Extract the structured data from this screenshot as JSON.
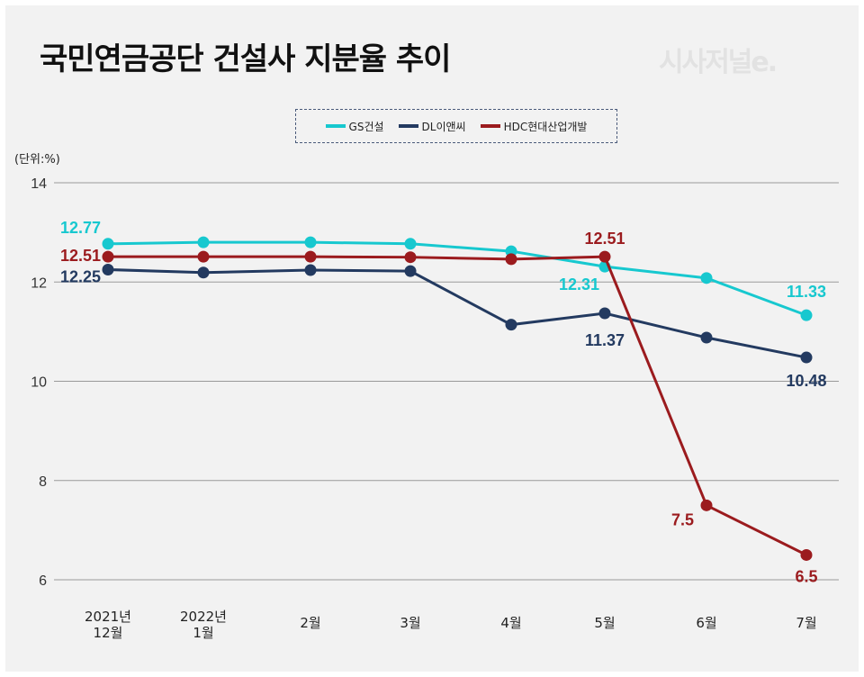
{
  "title": "국민연금공단 건설사 지분율 추이",
  "logo_text": "시사저널e.",
  "unit_label": "(단위:%)",
  "chart_data": {
    "type": "line",
    "title": "국민연금공단 건설사 지분율 추이",
    "xlabel": "",
    "ylabel": "(단위:%)",
    "categories": [
      "2021년\n12월",
      "2022년\n1월",
      "2월",
      "3월",
      "4월",
      "5월",
      "6월",
      "7월"
    ],
    "ylim": [
      6,
      14
    ],
    "yticks": [
      6,
      8,
      10,
      12,
      14
    ],
    "grid": true,
    "legend_position": "top-center",
    "series": [
      {
        "name": "GS건설",
        "color": "#17c8cf",
        "values": [
          12.77,
          12.8,
          12.8,
          12.77,
          12.62,
          12.31,
          12.08,
          11.33
        ],
        "labeled_points": [
          0,
          5,
          7
        ]
      },
      {
        "name": "DL이앤씨",
        "color": "#233a60",
        "values": [
          12.25,
          12.19,
          12.24,
          12.22,
          11.14,
          11.37,
          10.88,
          10.48
        ],
        "labeled_points": [
          0,
          5,
          7
        ]
      },
      {
        "name": "HDC현대산업개발",
        "color": "#9b1b1e",
        "values": [
          12.51,
          12.51,
          12.51,
          12.5,
          12.46,
          12.51,
          7.5,
          6.5
        ],
        "labeled_points": [
          0,
          5,
          6,
          7
        ]
      }
    ]
  }
}
